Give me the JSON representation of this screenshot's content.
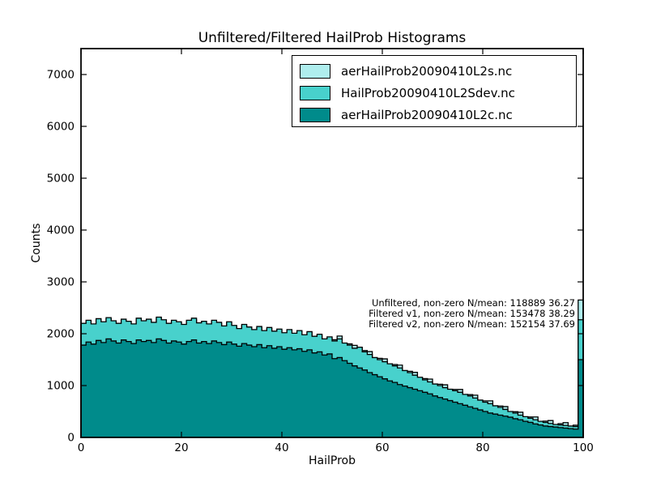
{
  "figure": {
    "title": "Unfiltered/Filtered HailProb Histograms",
    "xlabel": "HailProb",
    "ylabel": "Counts",
    "background": "#ffffff"
  },
  "chart_data": {
    "type": "bar",
    "subtype": "stepfilled-histogram-overlay",
    "bin_width": 1,
    "x_start": 0,
    "xlim": [
      0,
      100
    ],
    "ylim": [
      0,
      7500
    ],
    "xticks": [
      0,
      20,
      40,
      60,
      80,
      100
    ],
    "yticks": [
      0,
      1000,
      2000,
      3000,
      4000,
      5000,
      6000,
      7000
    ],
    "grid": false,
    "legend_position": "upper right",
    "edge_color": "#000000",
    "series": [
      {
        "name": "aerHailProb20090410L2s.nc",
        "color": "#AFEEEE",
        "values": [
          2175,
          2235,
          2165,
          2265,
          2205,
          2285,
          2225,
          2175,
          2255,
          2215,
          2165,
          2275,
          2225,
          2255,
          2195,
          2295,
          2245,
          2175,
          2235,
          2205,
          2155,
          2235,
          2275,
          2185,
          2215,
          2165,
          2235,
          2195,
          2125,
          2205,
          2135,
          2075,
          2155,
          2105,
          2055,
          2115,
          2035,
          2095,
          2025,
          2065,
          1995,
          2055,
          1985,
          2035,
          1955,
          2015,
          1925,
          1965,
          1875,
          1915,
          1885,
          1955,
          1800,
          1805,
          1775,
          1720,
          1675,
          1655,
          1520,
          1525,
          1515,
          1400,
          1405,
          1395,
          1270,
          1275,
          1255,
          1140,
          1135,
          1125,
          1010,
          1025,
          1015,
          910,
          925,
          925,
          810,
          825,
          815,
          700,
          705,
          705,
          590,
          605,
          595,
          480,
          495,
          485,
          380,
          395,
          395,
          290,
          315,
          325,
          230,
          265,
          285,
          200,
          235,
          2650
        ]
      },
      {
        "name": "HailProb20090410L2Sdev.nc",
        "color": "#48D1CC",
        "values": [
          2200,
          2260,
          2190,
          2290,
          2230,
          2310,
          2250,
          2200,
          2280,
          2240,
          2190,
          2300,
          2250,
          2280,
          2220,
          2320,
          2270,
          2200,
          2260,
          2230,
          2180,
          2260,
          2300,
          2210,
          2240,
          2190,
          2260,
          2220,
          2150,
          2230,
          2160,
          2100,
          2180,
          2130,
          2080,
          2140,
          2060,
          2120,
          2050,
          2090,
          2020,
          2080,
          2010,
          2060,
          1980,
          2040,
          1950,
          1990,
          1900,
          1940,
          1860,
          1900,
          1820,
          1780,
          1720,
          1740,
          1650,
          1600,
          1540,
          1500,
          1460,
          1420,
          1380,
          1340,
          1290,
          1250,
          1200,
          1160,
          1110,
          1070,
          1030,
          1000,
          960,
          930,
          900,
          870,
          830,
          800,
          760,
          720,
          680,
          650,
          610,
          580,
          540,
          500,
          470,
          430,
          400,
          370,
          340,
          310,
          290,
          270,
          250,
          240,
          230,
          220,
          210,
          2270
        ]
      },
      {
        "name": "aerHailProb20090410L2c.nc",
        "color": "#008B8B",
        "values": [
          1780,
          1840,
          1800,
          1870,
          1830,
          1900,
          1860,
          1820,
          1880,
          1850,
          1810,
          1880,
          1850,
          1870,
          1830,
          1900,
          1870,
          1820,
          1860,
          1840,
          1800,
          1850,
          1880,
          1820,
          1850,
          1810,
          1860,
          1830,
          1790,
          1840,
          1800,
          1760,
          1810,
          1780,
          1750,
          1790,
          1730,
          1770,
          1720,
          1750,
          1700,
          1730,
          1690,
          1710,
          1660,
          1690,
          1630,
          1650,
          1590,
          1610,
          1520,
          1540,
          1480,
          1430,
          1380,
          1340,
          1300,
          1250,
          1210,
          1170,
          1130,
          1090,
          1060,
          1020,
          990,
          960,
          930,
          900,
          870,
          840,
          800,
          770,
          740,
          710,
          680,
          650,
          620,
          590,
          560,
          530,
          500,
          470,
          450,
          430,
          410,
          390,
          360,
          340,
          310,
          290,
          260,
          240,
          220,
          210,
          200,
          190,
          180,
          170,
          160,
          1500
        ]
      }
    ],
    "annotations": [
      "Unfiltered, non-zero N/mean: 118889 36.27",
      "Filtered v1, non-zero N/mean: 153478 38.29",
      "Filtered v2, non-zero N/mean: 152154 37.69"
    ]
  }
}
